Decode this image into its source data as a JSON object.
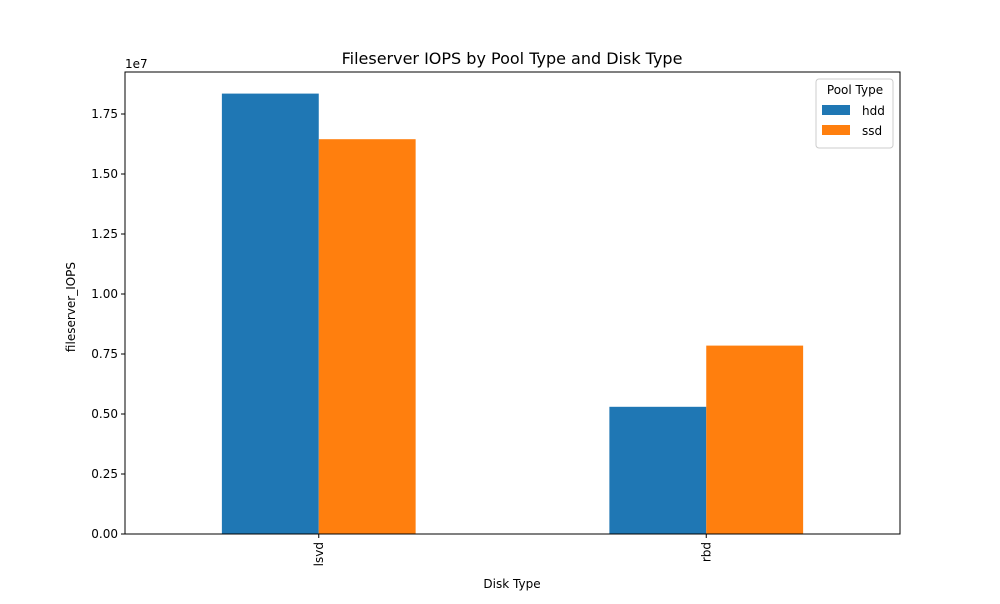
{
  "chart_data": {
    "type": "bar",
    "title": "Fileserver IOPS by Pool Type and Disk Type",
    "xlabel": "Disk Type",
    "ylabel": "fileserver_IOPS",
    "y_offset_label": "1e7",
    "categories": [
      "lsvd",
      "rbd"
    ],
    "series": [
      {
        "name": "hdd",
        "color": "#1f77b4",
        "values": [
          18350000,
          5300000
        ]
      },
      {
        "name": "ssd",
        "color": "#ff7f0e",
        "values": [
          16450000,
          7850000
        ]
      }
    ],
    "ylim": [
      0,
      19250000
    ],
    "y_ticks": [
      0,
      2500000,
      5000000,
      7500000,
      10000000,
      12500000,
      15000000,
      17500000
    ],
    "y_tick_labels": [
      "0.00",
      "0.25",
      "0.50",
      "0.75",
      "1.00",
      "1.25",
      "1.50",
      "1.75"
    ],
    "grid": false,
    "legend": {
      "title": "Pool Type",
      "placement": "top-right"
    }
  }
}
